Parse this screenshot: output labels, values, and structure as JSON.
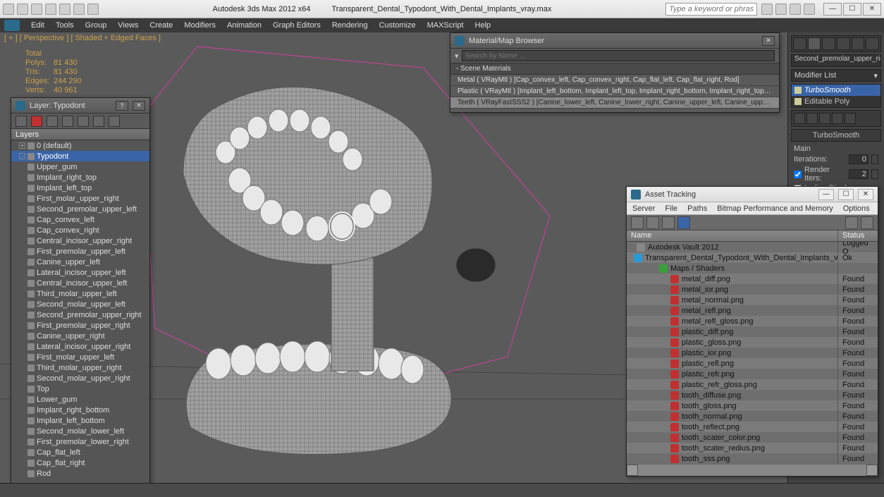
{
  "titlebar": {
    "app": "Autodesk 3ds Max  2012 x64",
    "file": "Transparent_Dental_Typodont_With_Dental_Implants_vray.max",
    "search_placeholder": "Type a keyword or phrase"
  },
  "menu": [
    "Edit",
    "Tools",
    "Group",
    "Views",
    "Create",
    "Modifiers",
    "Animation",
    "Graph Editors",
    "Rendering",
    "Customize",
    "MAXScript",
    "Help"
  ],
  "viewport": {
    "label": "[ + ] [ Perspective ] [ Shaded + Edged Faces ]",
    "stats_title": "Total",
    "stats": [
      {
        "k": "Polys:",
        "v": "81 430"
      },
      {
        "k": "Tris:",
        "v": "81 430"
      },
      {
        "k": "Edges:",
        "v": "244 290"
      },
      {
        "k": "Verts:",
        "v": "40 961"
      }
    ]
  },
  "cmdpanel": {
    "selected_name": "Second_premolar_upper_righ",
    "modlist_label": "Modifier List",
    "stack": [
      {
        "name": "TurboSmooth",
        "sel": true,
        "icon": "bulb"
      },
      {
        "name": "Editable Poly",
        "sel": false,
        "icon": "box"
      }
    ],
    "rollout_title": "TurboSmooth",
    "section": "Main",
    "iterations_label": "Iterations:",
    "iterations_value": "0",
    "render_iters_label": "Render Iters:",
    "render_iters_value": "2",
    "trailing": "Isoline Display"
  },
  "layer_panel": {
    "title": "Layer: Typodont",
    "col": "Layers",
    "rows": [
      {
        "name": "0 (default)",
        "indent": 0,
        "sel": false,
        "exp": "+"
      },
      {
        "name": "Typodont",
        "indent": 0,
        "sel": true,
        "exp": "-"
      },
      {
        "name": "Upper_gum",
        "indent": 1
      },
      {
        "name": "Implant_right_top",
        "indent": 1
      },
      {
        "name": "Implant_left_top",
        "indent": 1
      },
      {
        "name": "First_molar_upper_right",
        "indent": 1
      },
      {
        "name": "Second_premolar_upper_left",
        "indent": 1
      },
      {
        "name": "Cap_convex_left",
        "indent": 1
      },
      {
        "name": "Cap_convex_right",
        "indent": 1
      },
      {
        "name": "Central_incisor_upper_right",
        "indent": 1
      },
      {
        "name": "First_premolar_upper_left",
        "indent": 1
      },
      {
        "name": "Canine_upper_left",
        "indent": 1
      },
      {
        "name": "Lateral_incisor_upper_left",
        "indent": 1
      },
      {
        "name": "Central_incisor_upper_left",
        "indent": 1
      },
      {
        "name": "Third_molar_upper_left",
        "indent": 1
      },
      {
        "name": "Second_molar_upper_left",
        "indent": 1
      },
      {
        "name": "Second_premolar_upper_right",
        "indent": 1
      },
      {
        "name": "First_premolar_upper_right",
        "indent": 1
      },
      {
        "name": "Canine_upper_right",
        "indent": 1
      },
      {
        "name": "Lateral_incisor_upper_right",
        "indent": 1
      },
      {
        "name": "First_molar_upper_left",
        "indent": 1
      },
      {
        "name": "Third_molar_upper_right",
        "indent": 1
      },
      {
        "name": "Second_molar_upper_right",
        "indent": 1
      },
      {
        "name": "Top",
        "indent": 1
      },
      {
        "name": "Lower_gum",
        "indent": 1
      },
      {
        "name": "Implant_right_bottom",
        "indent": 1
      },
      {
        "name": "Implant_left_bottom",
        "indent": 1
      },
      {
        "name": "Second_molar_lower_left",
        "indent": 1
      },
      {
        "name": "First_premolar_lower_right",
        "indent": 1
      },
      {
        "name": "Cap_flat_left",
        "indent": 1
      },
      {
        "name": "Cap_flat_right",
        "indent": 1
      },
      {
        "name": "Rod",
        "indent": 1
      }
    ]
  },
  "mat_panel": {
    "title": "Material/Map Browser",
    "search_placeholder": "Search by Name ...",
    "group": "- Scene Materials",
    "items": [
      {
        "t": "Metal ( VRayMtl ) [Cap_convex_left, Cap_convex_right, Cap_flat_left, Cap_flat_right, Rod]",
        "sel": false
      },
      {
        "t": "Plastic ( VRayMtl ) [Implant_left_bottom, Implant_left_top, Implant_right_bottom, Implant_right_top, Lower...",
        "sel": false
      },
      {
        "t": "Teeth ( VRayFastSSS2 ) [Canine_lower_left, Canine_lower_right, Canine_upper_left, Canine_upper_right, Cent...",
        "sel": true
      }
    ]
  },
  "asset_panel": {
    "title": "Asset Tracking",
    "menu": [
      "Server",
      "File",
      "Paths",
      "Bitmap Performance and Memory",
      "Options"
    ],
    "col_name": "Name",
    "col_status": "Status",
    "rows": [
      {
        "name": "Autodesk Vault 2012",
        "status": "Logged O",
        "indent": 0,
        "ico": "#888"
      },
      {
        "name": "Transparent_Dental_Typodont_With_Dental_Implants_vray.max",
        "status": "Ok",
        "indent": 1,
        "ico": "#2a9ad6"
      },
      {
        "name": "Maps / Shaders",
        "status": "",
        "indent": 2,
        "ico": "#3aa03a"
      },
      {
        "name": "metal_diff.png",
        "status": "Found",
        "indent": 3,
        "ico": "#c03030"
      },
      {
        "name": "metal_ior.png",
        "status": "Found",
        "indent": 3,
        "ico": "#c03030"
      },
      {
        "name": "metal_normal.png",
        "status": "Found",
        "indent": 3,
        "ico": "#c03030"
      },
      {
        "name": "metal_refl.png",
        "status": "Found",
        "indent": 3,
        "ico": "#c03030"
      },
      {
        "name": "metal_refl_gloss.png",
        "status": "Found",
        "indent": 3,
        "ico": "#c03030"
      },
      {
        "name": "plastic_diff.png",
        "status": "Found",
        "indent": 3,
        "ico": "#c03030"
      },
      {
        "name": "plastic_gloss.png",
        "status": "Found",
        "indent": 3,
        "ico": "#c03030"
      },
      {
        "name": "plastic_ior.png",
        "status": "Found",
        "indent": 3,
        "ico": "#c03030"
      },
      {
        "name": "plastic_refl.png",
        "status": "Found",
        "indent": 3,
        "ico": "#c03030"
      },
      {
        "name": "plastic_refr.png",
        "status": "Found",
        "indent": 3,
        "ico": "#c03030"
      },
      {
        "name": "plastic_refr_gloss.png",
        "status": "Found",
        "indent": 3,
        "ico": "#c03030"
      },
      {
        "name": "tooth_diffuse.png",
        "status": "Found",
        "indent": 3,
        "ico": "#c03030"
      },
      {
        "name": "tooth_gloss.png",
        "status": "Found",
        "indent": 3,
        "ico": "#c03030"
      },
      {
        "name": "tooth_normal.png",
        "status": "Found",
        "indent": 3,
        "ico": "#c03030"
      },
      {
        "name": "tooth_reflect.png",
        "status": "Found",
        "indent": 3,
        "ico": "#c03030"
      },
      {
        "name": "tooth_scater_color.png",
        "status": "Found",
        "indent": 3,
        "ico": "#c03030"
      },
      {
        "name": "tooth_scater_redius.png",
        "status": "Found",
        "indent": 3,
        "ico": "#c03030"
      },
      {
        "name": "tooth_sss.png",
        "status": "Found",
        "indent": 3,
        "ico": "#c03030"
      }
    ]
  },
  "colors": {
    "sel": "#3a64a8",
    "accent": "#caa04a"
  }
}
